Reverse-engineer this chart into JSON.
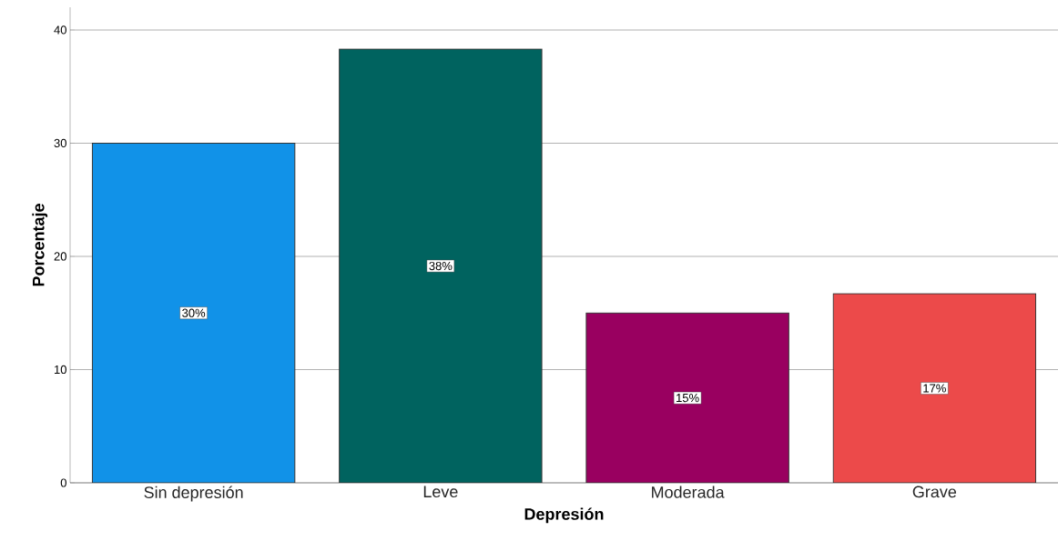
{
  "chart_data": {
    "type": "bar",
    "xlabel": "Depresión",
    "ylabel": "Porcentaje",
    "categories": [
      "Sin depresión",
      "Leve",
      "Moderada",
      "Grave"
    ],
    "values": [
      30.0,
      38.3,
      15.0,
      16.7
    ],
    "colors": [
      "#1192e8",
      "#00635f",
      "#990060",
      "#ec4a4a"
    ],
    "value_labels": [
      "30%",
      "38%",
      "15%",
      "17%"
    ],
    "ylim": [
      0,
      42
    ],
    "yticks": [
      0,
      10,
      20,
      30,
      40
    ],
    "grid": "y"
  }
}
